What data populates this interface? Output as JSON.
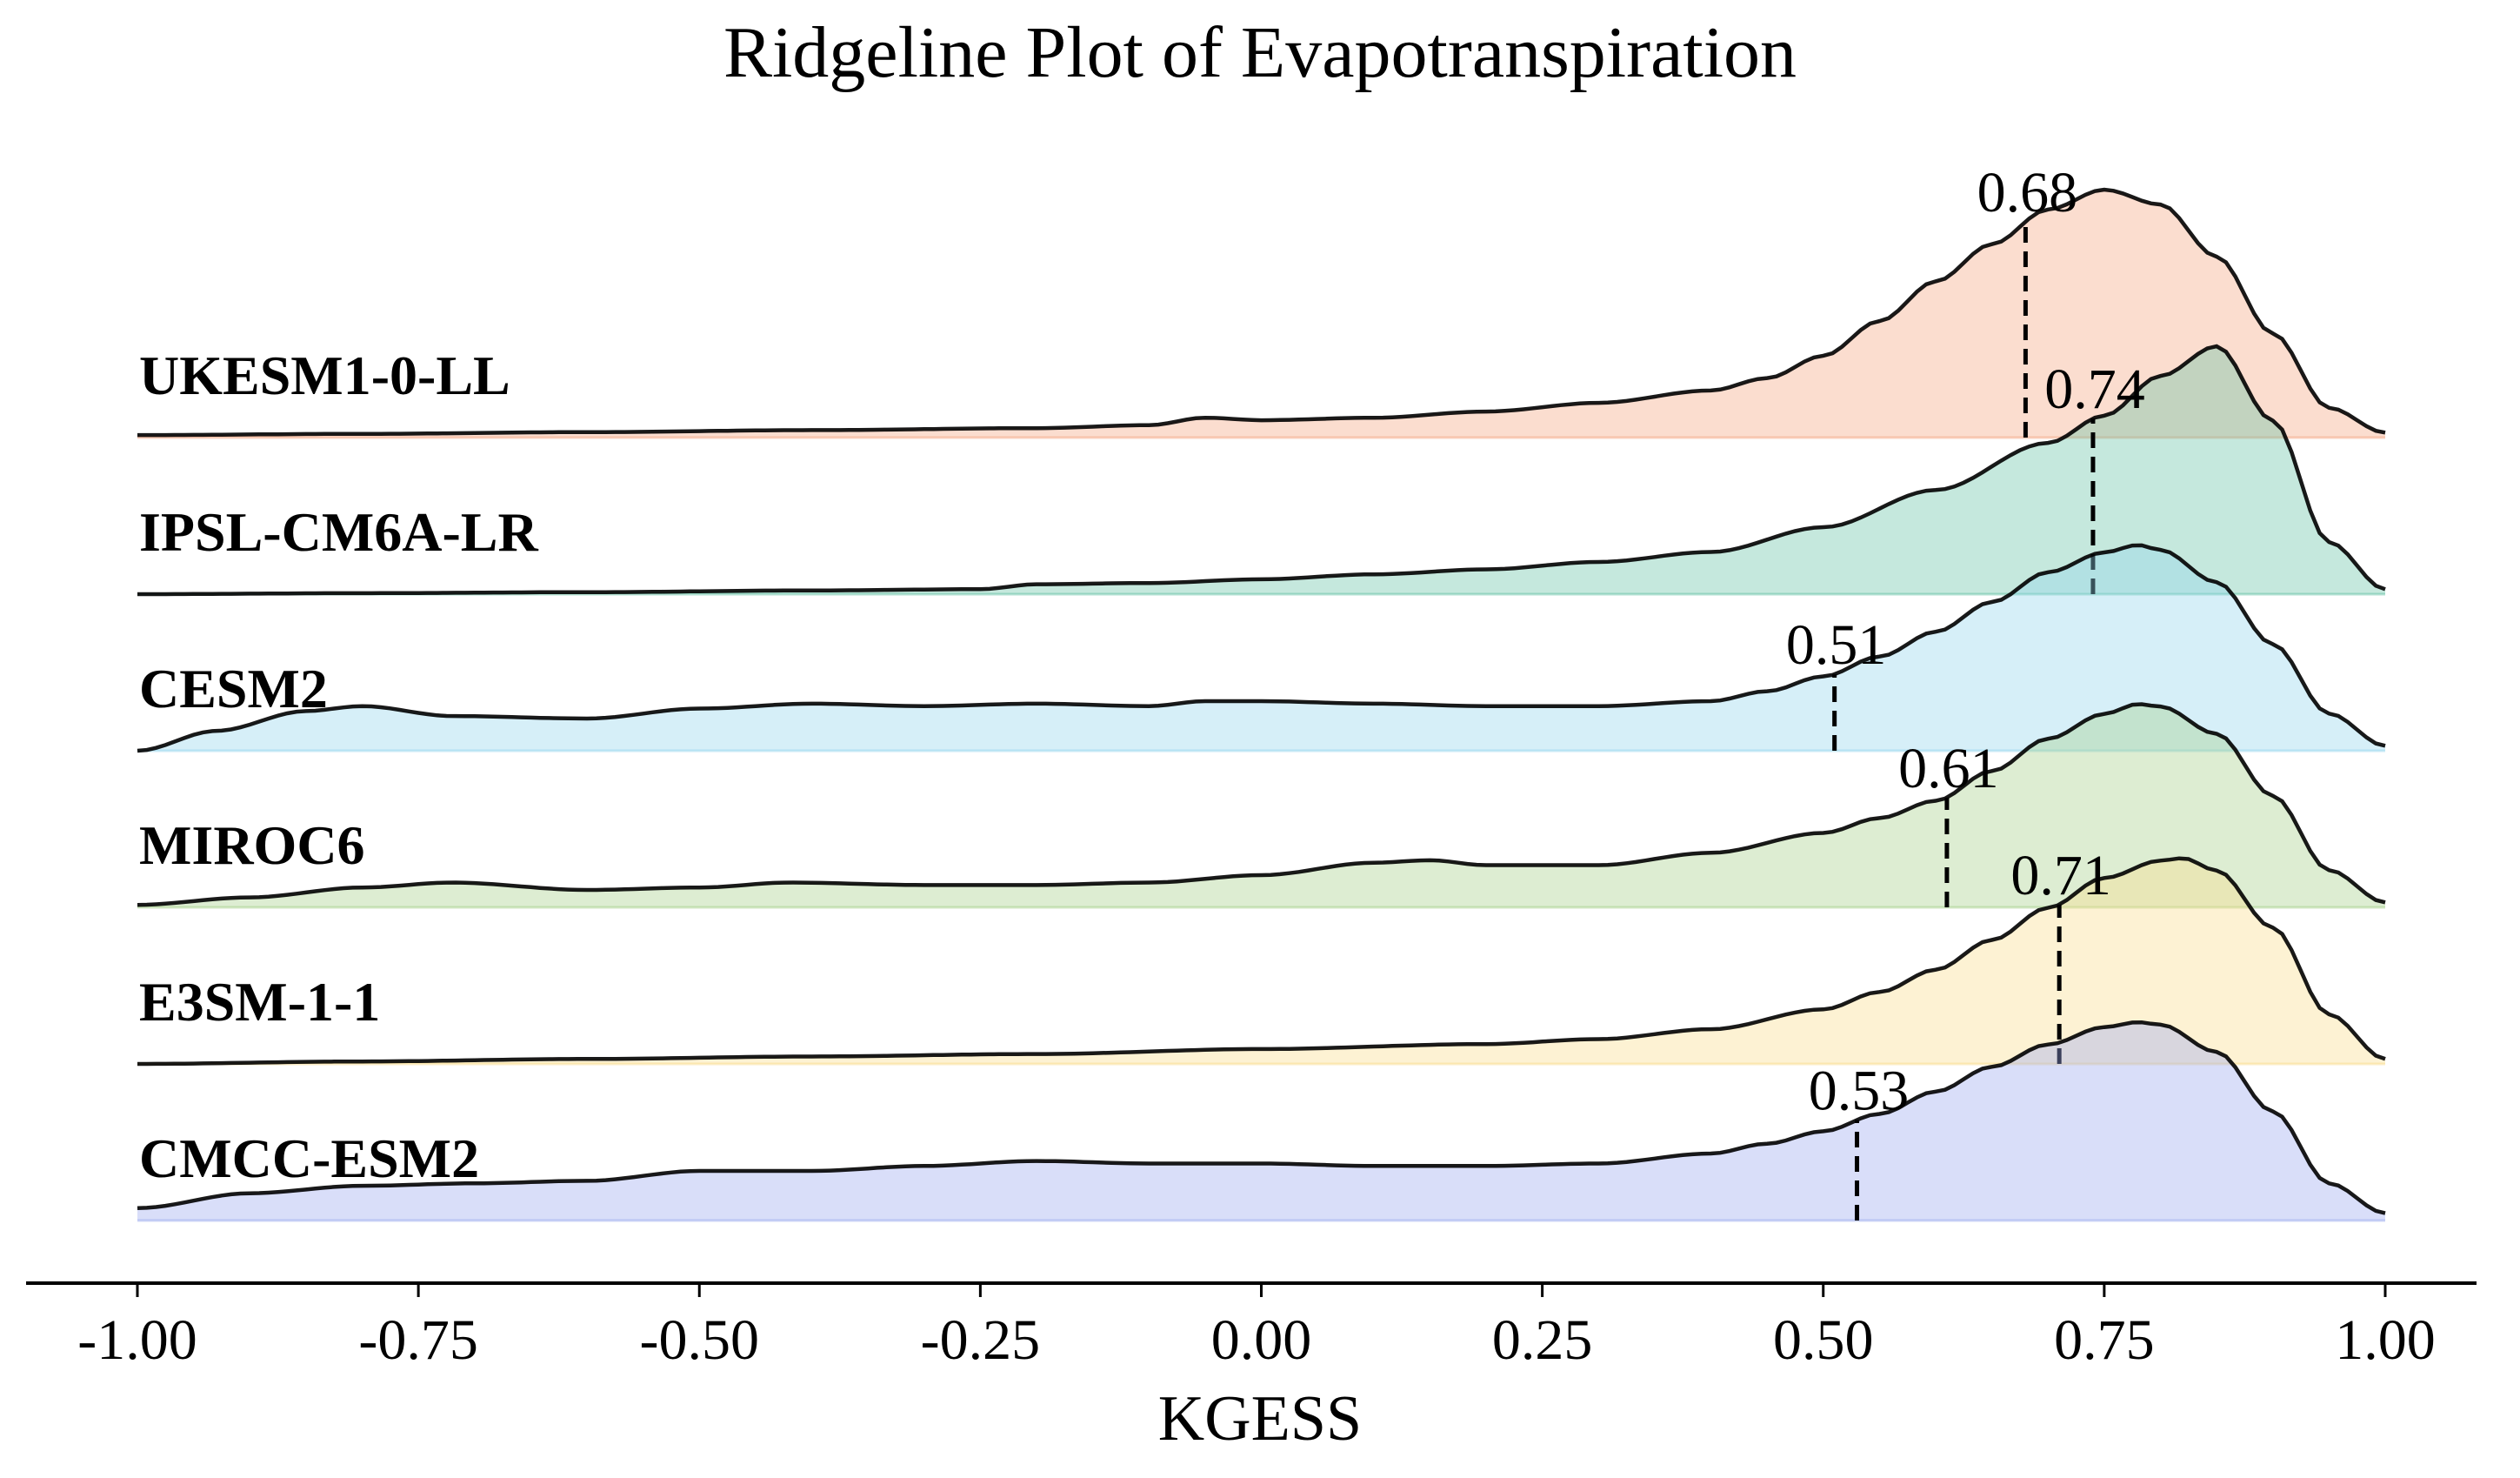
{
  "chart_data": {
    "type": "ridgeline",
    "title": "Ridgeline Plot of Evapotranspiration",
    "xlabel": "KGESS",
    "xlim": [
      -1.0,
      1.0
    ],
    "x_ticks": [
      "-1.00",
      "-0.75",
      "-0.50",
      "-0.25",
      "0.00",
      "0.25",
      "0.50",
      "0.75",
      "1.00"
    ],
    "series": [
      {
        "name": "UKESM1-0-LL",
        "color": "#f4a582",
        "median": 0.68,
        "median_label": "0.68",
        "density": [
          [
            -1.0,
            0.01
          ],
          [
            -0.8,
            0.015
          ],
          [
            -0.6,
            0.022
          ],
          [
            -0.4,
            0.03
          ],
          [
            -0.2,
            0.038
          ],
          [
            -0.1,
            0.05
          ],
          [
            -0.05,
            0.08
          ],
          [
            0.0,
            0.07
          ],
          [
            0.1,
            0.08
          ],
          [
            0.2,
            0.105
          ],
          [
            0.3,
            0.14
          ],
          [
            0.4,
            0.19
          ],
          [
            0.45,
            0.24
          ],
          [
            0.5,
            0.33
          ],
          [
            0.55,
            0.47
          ],
          [
            0.6,
            0.63
          ],
          [
            0.65,
            0.78
          ],
          [
            0.7,
            0.92
          ],
          [
            0.75,
            1.0
          ],
          [
            0.8,
            0.94
          ],
          [
            0.85,
            0.73
          ],
          [
            0.9,
            0.42
          ],
          [
            0.95,
            0.12
          ],
          [
            1.0,
            0.02
          ]
        ]
      },
      {
        "name": "IPSL-CM6A-LR",
        "color": "#66c2a5",
        "median": 0.74,
        "median_label": "0.74",
        "density": [
          [
            -1.0,
            0.0
          ],
          [
            -0.8,
            0.004
          ],
          [
            -0.6,
            0.008
          ],
          [
            -0.4,
            0.015
          ],
          [
            -0.25,
            0.02
          ],
          [
            -0.2,
            0.04
          ],
          [
            -0.1,
            0.045
          ],
          [
            0.0,
            0.06
          ],
          [
            0.1,
            0.08
          ],
          [
            0.2,
            0.1
          ],
          [
            0.3,
            0.13
          ],
          [
            0.4,
            0.17
          ],
          [
            0.5,
            0.27
          ],
          [
            0.6,
            0.42
          ],
          [
            0.7,
            0.61
          ],
          [
            0.75,
            0.72
          ],
          [
            0.8,
            0.88
          ],
          [
            0.85,
            1.0
          ],
          [
            0.9,
            0.7
          ],
          [
            0.95,
            0.21
          ],
          [
            1.0,
            0.02
          ]
        ]
      },
      {
        "name": "CESM2",
        "color": "#92d5ed",
        "median": 0.51,
        "median_label": "0.51",
        "density": [
          [
            -1.0,
            0.0
          ],
          [
            -0.93,
            0.08
          ],
          [
            -0.85,
            0.16
          ],
          [
            -0.8,
            0.18
          ],
          [
            -0.72,
            0.14
          ],
          [
            -0.6,
            0.13
          ],
          [
            -0.5,
            0.17
          ],
          [
            -0.4,
            0.19
          ],
          [
            -0.3,
            0.18
          ],
          [
            -0.2,
            0.19
          ],
          [
            -0.1,
            0.18
          ],
          [
            -0.05,
            0.2
          ],
          [
            0.0,
            0.2
          ],
          [
            0.1,
            0.19
          ],
          [
            0.2,
            0.18
          ],
          [
            0.3,
            0.18
          ],
          [
            0.4,
            0.2
          ],
          [
            0.45,
            0.24
          ],
          [
            0.5,
            0.3
          ],
          [
            0.55,
            0.38
          ],
          [
            0.6,
            0.48
          ],
          [
            0.65,
            0.6
          ],
          [
            0.7,
            0.72
          ],
          [
            0.75,
            0.8
          ],
          [
            0.78,
            0.83
          ],
          [
            0.8,
            0.81
          ],
          [
            0.85,
            0.68
          ],
          [
            0.9,
            0.43
          ],
          [
            0.95,
            0.15
          ],
          [
            1.0,
            0.02
          ]
        ]
      },
      {
        "name": "MIROC6",
        "color": "#a6cf8a",
        "median": 0.61,
        "median_label": "0.61",
        "density": [
          [
            -1.0,
            0.01
          ],
          [
            -0.9,
            0.04
          ],
          [
            -0.8,
            0.08
          ],
          [
            -0.72,
            0.1
          ],
          [
            -0.6,
            0.07
          ],
          [
            -0.5,
            0.08
          ],
          [
            -0.42,
            0.1
          ],
          [
            -0.3,
            0.09
          ],
          [
            -0.2,
            0.09
          ],
          [
            -0.1,
            0.1
          ],
          [
            0.0,
            0.13
          ],
          [
            0.1,
            0.18
          ],
          [
            0.15,
            0.19
          ],
          [
            0.2,
            0.17
          ],
          [
            0.3,
            0.17
          ],
          [
            0.4,
            0.22
          ],
          [
            0.5,
            0.3
          ],
          [
            0.55,
            0.36
          ],
          [
            0.6,
            0.43
          ],
          [
            0.65,
            0.55
          ],
          [
            0.7,
            0.68
          ],
          [
            0.75,
            0.78
          ],
          [
            0.78,
            0.82
          ],
          [
            0.8,
            0.81
          ],
          [
            0.85,
            0.7
          ],
          [
            0.9,
            0.45
          ],
          [
            0.95,
            0.15
          ],
          [
            1.0,
            0.02
          ]
        ]
      },
      {
        "name": "E3SM-1-1",
        "color": "#f9dc8c",
        "median": 0.71,
        "median_label": "0.71",
        "density": [
          [
            -1.0,
            0.0
          ],
          [
            -0.8,
            0.01
          ],
          [
            -0.6,
            0.02
          ],
          [
            -0.4,
            0.03
          ],
          [
            -0.2,
            0.04
          ],
          [
            0.0,
            0.06
          ],
          [
            0.2,
            0.08
          ],
          [
            0.3,
            0.1
          ],
          [
            0.4,
            0.14
          ],
          [
            0.5,
            0.22
          ],
          [
            0.55,
            0.29
          ],
          [
            0.6,
            0.38
          ],
          [
            0.65,
            0.5
          ],
          [
            0.7,
            0.63
          ],
          [
            0.75,
            0.75
          ],
          [
            0.8,
            0.82
          ],
          [
            0.82,
            0.83
          ],
          [
            0.85,
            0.78
          ],
          [
            0.9,
            0.55
          ],
          [
            0.95,
            0.2
          ],
          [
            1.0,
            0.02
          ]
        ]
      },
      {
        "name": "CMCC-ESM2",
        "color": "#9aa9ee",
        "median": 0.53,
        "median_label": "0.53",
        "density": [
          [
            -1.0,
            0.05
          ],
          [
            -0.9,
            0.11
          ],
          [
            -0.8,
            0.14
          ],
          [
            -0.7,
            0.15
          ],
          [
            -0.6,
            0.16
          ],
          [
            -0.5,
            0.2
          ],
          [
            -0.4,
            0.2
          ],
          [
            -0.3,
            0.22
          ],
          [
            -0.2,
            0.24
          ],
          [
            -0.1,
            0.23
          ],
          [
            0.0,
            0.23
          ],
          [
            0.1,
            0.22
          ],
          [
            0.2,
            0.22
          ],
          [
            0.3,
            0.23
          ],
          [
            0.4,
            0.27
          ],
          [
            0.45,
            0.31
          ],
          [
            0.5,
            0.36
          ],
          [
            0.55,
            0.43
          ],
          [
            0.6,
            0.52
          ],
          [
            0.65,
            0.62
          ],
          [
            0.7,
            0.71
          ],
          [
            0.75,
            0.78
          ],
          [
            0.78,
            0.8
          ],
          [
            0.8,
            0.79
          ],
          [
            0.85,
            0.68
          ],
          [
            0.9,
            0.44
          ],
          [
            0.95,
            0.15
          ],
          [
            1.0,
            0.03
          ]
        ]
      }
    ]
  }
}
